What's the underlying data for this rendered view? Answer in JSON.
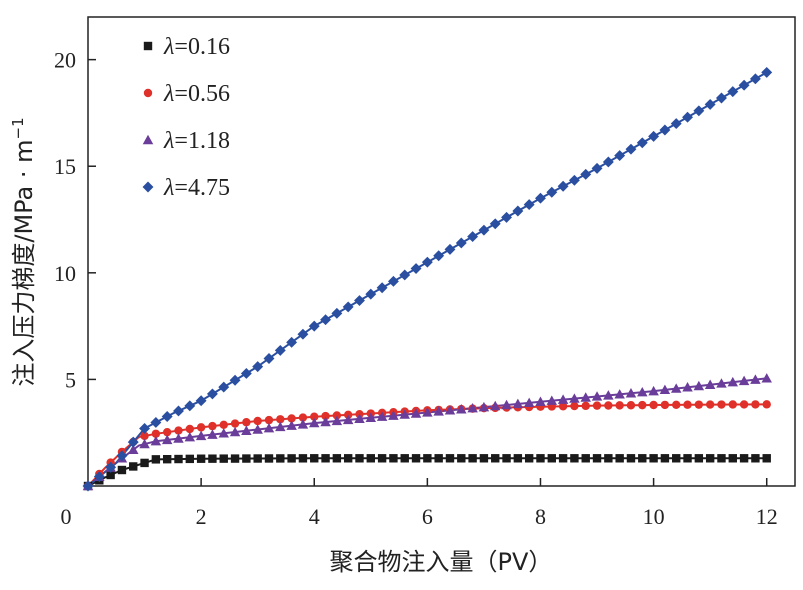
{
  "chart_data": {
    "type": "line",
    "xlabel": "聚合物注入量（PV）",
    "ylabel": "注入压力梯度/MPa · m",
    "ylabel_sup": "−1",
    "xlim": [
      0,
      12.5
    ],
    "ylim": [
      0,
      22
    ],
    "xticks": [
      0,
      2,
      4,
      6,
      8,
      10,
      12
    ],
    "yticks": [
      5,
      10,
      15,
      20
    ],
    "legend_position": "top-left",
    "legend_prefix": "λ",
    "series": [
      {
        "name": "=0.16",
        "color": "#1a1a1a",
        "marker": "square",
        "keypoints": [
          [
            0,
            0
          ],
          [
            0.3,
            0.4
          ],
          [
            0.6,
            0.75
          ],
          [
            0.9,
            1.0
          ],
          [
            1.2,
            1.25
          ],
          [
            2,
            1.28
          ],
          [
            4,
            1.3
          ],
          [
            6,
            1.3
          ],
          [
            8,
            1.3
          ],
          [
            10,
            1.3
          ],
          [
            12,
            1.3
          ]
        ]
      },
      {
        "name": "=0.56",
        "color": "#e0302a",
        "marker": "circle",
        "keypoints": [
          [
            0,
            0
          ],
          [
            0.3,
            0.85
          ],
          [
            0.6,
            1.6
          ],
          [
            0.9,
            2.3
          ],
          [
            1.2,
            2.45
          ],
          [
            2,
            2.75
          ],
          [
            3,
            3.05
          ],
          [
            4,
            3.25
          ],
          [
            5,
            3.4
          ],
          [
            6,
            3.55
          ],
          [
            7,
            3.65
          ],
          [
            8,
            3.72
          ],
          [
            9,
            3.77
          ],
          [
            10,
            3.8
          ],
          [
            11,
            3.82
          ],
          [
            12,
            3.83
          ]
        ]
      },
      {
        "name": "=1.18",
        "color": "#6a3d9a",
        "marker": "triangle",
        "keypoints": [
          [
            0,
            0
          ],
          [
            0.3,
            0.65
          ],
          [
            0.6,
            1.3
          ],
          [
            0.9,
            1.9
          ],
          [
            1.2,
            2.1
          ],
          [
            2,
            2.35
          ],
          [
            3,
            2.65
          ],
          [
            4,
            2.95
          ],
          [
            5,
            3.2
          ],
          [
            6,
            3.45
          ],
          [
            7,
            3.7
          ],
          [
            8,
            3.95
          ],
          [
            9,
            4.2
          ],
          [
            10,
            4.45
          ],
          [
            11,
            4.75
          ],
          [
            12,
            5.05
          ]
        ]
      },
      {
        "name": "=4.75",
        "color": "#2b4fa0",
        "marker": "diamond",
        "keypoints": [
          [
            0,
            0
          ],
          [
            0.5,
            1.1
          ],
          [
            1.0,
            2.7
          ],
          [
            1.5,
            3.4
          ],
          [
            2,
            4.0
          ],
          [
            3,
            5.6
          ],
          [
            4,
            7.5
          ],
          [
            5,
            9.0
          ],
          [
            6,
            10.5
          ],
          [
            7,
            12.0
          ],
          [
            8,
            13.5
          ],
          [
            9,
            14.9
          ],
          [
            10,
            16.4
          ],
          [
            11,
            17.9
          ],
          [
            12,
            19.4
          ]
        ]
      }
    ]
  }
}
